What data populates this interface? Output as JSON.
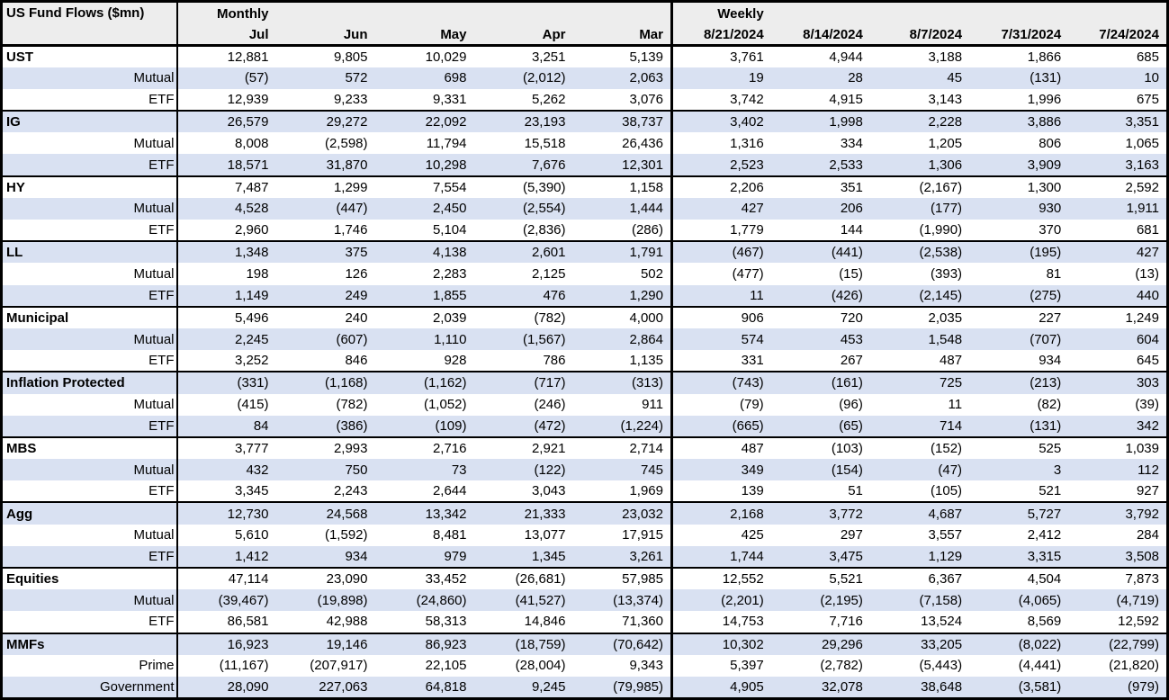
{
  "colors": {
    "stripe": "#D9E1F2",
    "header_bg": "#EDEDED",
    "border": "#000000"
  },
  "table": {
    "title": "US Fund Flows ($mn)",
    "monthly_label": "Monthly",
    "weekly_label": "Weekly",
    "monthly_columns": [
      "Jul",
      "Jun",
      "May",
      "Apr",
      "Mar"
    ],
    "weekly_columns": [
      "8/21/2024",
      "8/14/2024",
      "8/7/2024",
      "7/31/2024",
      "7/24/2024"
    ],
    "sections": [
      {
        "name": "UST",
        "rows": [
          {
            "label": "UST",
            "type": "category",
            "monthly": [
              "12,881",
              "9,805",
              "10,029",
              "3,251",
              "5,139"
            ],
            "weekly": [
              "3,761",
              "4,944",
              "3,188",
              "1,866",
              "685"
            ]
          },
          {
            "label": "Mutual",
            "type": "sub",
            "monthly": [
              "(57)",
              "572",
              "698",
              "(2,012)",
              "2,063"
            ],
            "weekly": [
              "19",
              "28",
              "45",
              "(131)",
              "10"
            ]
          },
          {
            "label": "ETF",
            "type": "sub",
            "monthly": [
              "12,939",
              "9,233",
              "9,331",
              "5,262",
              "3,076"
            ],
            "weekly": [
              "3,742",
              "4,915",
              "3,143",
              "1,996",
              "675"
            ]
          }
        ]
      },
      {
        "name": "IG",
        "rows": [
          {
            "label": "IG",
            "type": "category",
            "monthly": [
              "26,579",
              "29,272",
              "22,092",
              "23,193",
              "38,737"
            ],
            "weekly": [
              "3,402",
              "1,998",
              "2,228",
              "3,886",
              "3,351"
            ]
          },
          {
            "label": "Mutual",
            "type": "sub",
            "monthly": [
              "8,008",
              "(2,598)",
              "11,794",
              "15,518",
              "26,436"
            ],
            "weekly": [
              "1,316",
              "334",
              "1,205",
              "806",
              "1,065"
            ]
          },
          {
            "label": "ETF",
            "type": "sub",
            "monthly": [
              "18,571",
              "31,870",
              "10,298",
              "7,676",
              "12,301"
            ],
            "weekly": [
              "2,523",
              "2,533",
              "1,306",
              "3,909",
              "3,163"
            ]
          }
        ]
      },
      {
        "name": "HY",
        "rows": [
          {
            "label": "HY",
            "type": "category",
            "monthly": [
              "7,487",
              "1,299",
              "7,554",
              "(5,390)",
              "1,158"
            ],
            "weekly": [
              "2,206",
              "351",
              "(2,167)",
              "1,300",
              "2,592"
            ]
          },
          {
            "label": "Mutual",
            "type": "sub",
            "monthly": [
              "4,528",
              "(447)",
              "2,450",
              "(2,554)",
              "1,444"
            ],
            "weekly": [
              "427",
              "206",
              "(177)",
              "930",
              "1,911"
            ]
          },
          {
            "label": "ETF",
            "type": "sub",
            "monthly": [
              "2,960",
              "1,746",
              "5,104",
              "(2,836)",
              "(286)"
            ],
            "weekly": [
              "1,779",
              "144",
              "(1,990)",
              "370",
              "681"
            ]
          }
        ]
      },
      {
        "name": "LL",
        "rows": [
          {
            "label": "LL",
            "type": "category",
            "monthly": [
              "1,348",
              "375",
              "4,138",
              "2,601",
              "1,791"
            ],
            "weekly": [
              "(467)",
              "(441)",
              "(2,538)",
              "(195)",
              "427"
            ]
          },
          {
            "label": "Mutual",
            "type": "sub",
            "monthly": [
              "198",
              "126",
              "2,283",
              "2,125",
              "502"
            ],
            "weekly": [
              "(477)",
              "(15)",
              "(393)",
              "81",
              "(13)"
            ]
          },
          {
            "label": "ETF",
            "type": "sub",
            "monthly": [
              "1,149",
              "249",
              "1,855",
              "476",
              "1,290"
            ],
            "weekly": [
              "11",
              "(426)",
              "(2,145)",
              "(275)",
              "440"
            ]
          }
        ]
      },
      {
        "name": "Municipal",
        "rows": [
          {
            "label": "Municipal",
            "type": "category",
            "monthly": [
              "5,496",
              "240",
              "2,039",
              "(782)",
              "4,000"
            ],
            "weekly": [
              "906",
              "720",
              "2,035",
              "227",
              "1,249"
            ]
          },
          {
            "label": "Mutual",
            "type": "sub",
            "monthly": [
              "2,245",
              "(607)",
              "1,110",
              "(1,567)",
              "2,864"
            ],
            "weekly": [
              "574",
              "453",
              "1,548",
              "(707)",
              "604"
            ]
          },
          {
            "label": "ETF",
            "type": "sub",
            "monthly": [
              "3,252",
              "846",
              "928",
              "786",
              "1,135"
            ],
            "weekly": [
              "331",
              "267",
              "487",
              "934",
              "645"
            ]
          }
        ]
      },
      {
        "name": "Inflation Protected",
        "rows": [
          {
            "label": "Inflation Protected",
            "type": "category",
            "monthly": [
              "(331)",
              "(1,168)",
              "(1,162)",
              "(717)",
              "(313)"
            ],
            "weekly": [
              "(743)",
              "(161)",
              "725",
              "(213)",
              "303"
            ]
          },
          {
            "label": "Mutual",
            "type": "sub",
            "monthly": [
              "(415)",
              "(782)",
              "(1,052)",
              "(246)",
              "911"
            ],
            "weekly": [
              "(79)",
              "(96)",
              "11",
              "(82)",
              "(39)"
            ]
          },
          {
            "label": "ETF",
            "type": "sub",
            "monthly": [
              "84",
              "(386)",
              "(109)",
              "(472)",
              "(1,224)"
            ],
            "weekly": [
              "(665)",
              "(65)",
              "714",
              "(131)",
              "342"
            ]
          }
        ]
      },
      {
        "name": "MBS",
        "rows": [
          {
            "label": "MBS",
            "type": "category",
            "monthly": [
              "3,777",
              "2,993",
              "2,716",
              "2,921",
              "2,714"
            ],
            "weekly": [
              "487",
              "(103)",
              "(152)",
              "525",
              "1,039"
            ]
          },
          {
            "label": "Mutual",
            "type": "sub",
            "monthly": [
              "432",
              "750",
              "73",
              "(122)",
              "745"
            ],
            "weekly": [
              "349",
              "(154)",
              "(47)",
              "3",
              "112"
            ]
          },
          {
            "label": "ETF",
            "type": "sub",
            "monthly": [
              "3,345",
              "2,243",
              "2,644",
              "3,043",
              "1,969"
            ],
            "weekly": [
              "139",
              "51",
              "(105)",
              "521",
              "927"
            ]
          }
        ]
      },
      {
        "name": "Agg",
        "rows": [
          {
            "label": "Agg",
            "type": "category",
            "monthly": [
              "12,730",
              "24,568",
              "13,342",
              "21,333",
              "23,032"
            ],
            "weekly": [
              "2,168",
              "3,772",
              "4,687",
              "5,727",
              "3,792"
            ]
          },
          {
            "label": "Mutual",
            "type": "sub",
            "monthly": [
              "5,610",
              "(1,592)",
              "8,481",
              "13,077",
              "17,915"
            ],
            "weekly": [
              "425",
              "297",
              "3,557",
              "2,412",
              "284"
            ]
          },
          {
            "label": "ETF",
            "type": "sub",
            "monthly": [
              "1,412",
              "934",
              "979",
              "1,345",
              "3,261"
            ],
            "weekly": [
              "1,744",
              "3,475",
              "1,129",
              "3,315",
              "3,508"
            ]
          }
        ]
      },
      {
        "name": "Equities",
        "rows": [
          {
            "label": "Equities",
            "type": "category",
            "monthly": [
              "47,114",
              "23,090",
              "33,452",
              "(26,681)",
              "57,985"
            ],
            "weekly": [
              "12,552",
              "5,521",
              "6,367",
              "4,504",
              "7,873"
            ]
          },
          {
            "label": "Mutual",
            "type": "sub",
            "monthly": [
              "(39,467)",
              "(19,898)",
              "(24,860)",
              "(41,527)",
              "(13,374)"
            ],
            "weekly": [
              "(2,201)",
              "(2,195)",
              "(7,158)",
              "(4,065)",
              "(4,719)"
            ]
          },
          {
            "label": "ETF",
            "type": "sub",
            "monthly": [
              "86,581",
              "42,988",
              "58,313",
              "14,846",
              "71,360"
            ],
            "weekly": [
              "14,753",
              "7,716",
              "13,524",
              "8,569",
              "12,592"
            ]
          }
        ]
      },
      {
        "name": "MMFs",
        "rows": [
          {
            "label": "MMFs",
            "type": "category",
            "monthly": [
              "16,923",
              "19,146",
              "86,923",
              "(18,759)",
              "(70,642)"
            ],
            "weekly": [
              "10,302",
              "29,296",
              "33,205",
              "(8,022)",
              "(22,799)"
            ]
          },
          {
            "label": "Prime",
            "type": "sub",
            "monthly": [
              "(11,167)",
              "(207,917)",
              "22,105",
              "(28,004)",
              "9,343"
            ],
            "weekly": [
              "5,397",
              "(2,782)",
              "(5,443)",
              "(4,441)",
              "(21,820)"
            ]
          },
          {
            "label": "Government",
            "type": "sub",
            "monthly": [
              "28,090",
              "227,063",
              "64,818",
              "9,245",
              "(79,985)"
            ],
            "weekly": [
              "4,905",
              "32,078",
              "38,648",
              "(3,581)",
              "(979)"
            ]
          }
        ]
      }
    ]
  }
}
